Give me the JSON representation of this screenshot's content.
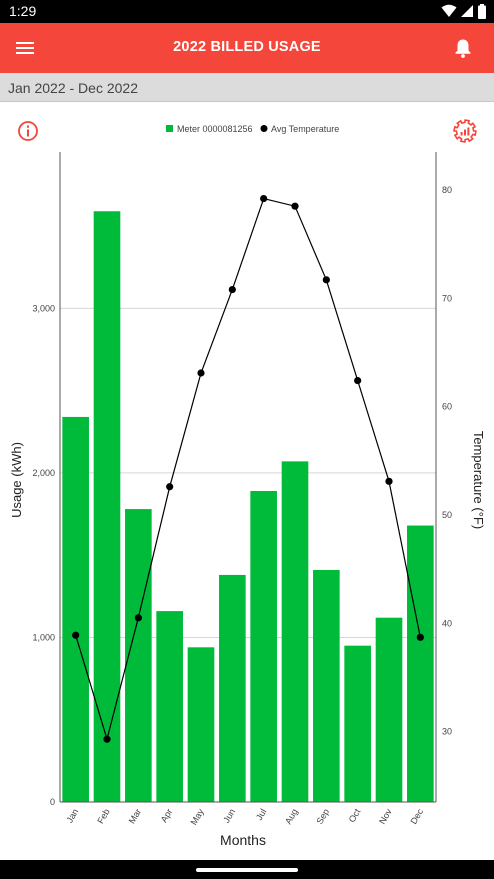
{
  "status_bar": {
    "time": "1:29"
  },
  "app_bar": {
    "title": "2022 BILLED USAGE"
  },
  "period": {
    "label": "Jan 2022 - Dec 2022"
  },
  "colors": {
    "accent": "#f4463b",
    "bar": "#00bb3a",
    "line": "#000000"
  },
  "icons": {
    "menu": "menu-icon",
    "bell": "bell-icon",
    "info": "info-icon",
    "settings": "chart-settings-icon"
  },
  "chart_data": {
    "type": "bar",
    "categories": [
      "Jan",
      "Feb",
      "Mar",
      "Apr",
      "May",
      "Jun",
      "Jul",
      "Aug",
      "Sep",
      "Oct",
      "Nov",
      "Dec"
    ],
    "series": [
      {
        "name": "Meter 0000081256",
        "type": "bar",
        "axis": "left",
        "values": [
          2340,
          3590,
          1780,
          1160,
          940,
          1380,
          1890,
          2070,
          1410,
          950,
          1120,
          1680
        ]
      },
      {
        "name": "Avg Temperature",
        "type": "line",
        "axis": "right",
        "values": [
          38.9,
          29.3,
          40.5,
          52.6,
          63.1,
          70.8,
          79.2,
          78.5,
          71.7,
          62.4,
          53.1,
          38.7
        ]
      }
    ],
    "xlabel": "Months",
    "ylabel": "Usage (kWh)",
    "y2label": "Temperature (°F)",
    "ylim": [
      0,
      3950
    ],
    "y2lim": [
      23.5,
      83.5
    ],
    "yticks": [
      "0",
      "1,000",
      "2,000",
      "3,000"
    ],
    "yticks_values": [
      0,
      1000,
      2000,
      3000
    ],
    "y2ticks": [
      "30",
      "40",
      "50",
      "60",
      "70",
      "80"
    ],
    "y2ticks_values": [
      30,
      40,
      50,
      60,
      70,
      80
    ],
    "legend_position": "top-center",
    "grid": true
  }
}
